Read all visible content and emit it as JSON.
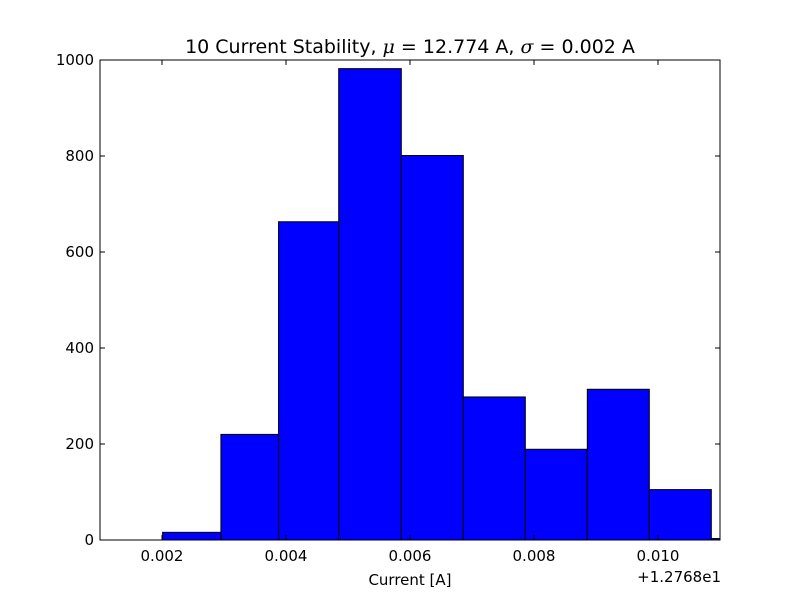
{
  "chart_data": {
    "type": "bar",
    "title": "10 Current Stability, μ = 12.774 A, σ = 0.002 A",
    "title_parts": {
      "lead": "10 Current Stability, ",
      "mu": "μ",
      "mu_text": " = 12.774 A, ",
      "sigma": "σ",
      "sigma_text": " = 0.002 A"
    },
    "xlabel": "Current [A]",
    "ylabel": "",
    "x_offset_label": "+1.2768e1",
    "xlim": [
      0.001,
      0.011
    ],
    "ylim": [
      0,
      1000
    ],
    "x_ticks": [
      0.002,
      0.004,
      0.006,
      0.008,
      0.01
    ],
    "x_tick_labels": [
      "0.002",
      "0.004",
      "0.006",
      "0.008",
      "0.010"
    ],
    "y_ticks": [
      0,
      200,
      400,
      600,
      800,
      1000
    ],
    "y_tick_labels": [
      "0",
      "200",
      "400",
      "600",
      "800",
      "1000"
    ],
    "bins": [
      {
        "x0": 0.00201,
        "x1": 0.00295,
        "count": 16
      },
      {
        "x0": 0.00295,
        "x1": 0.00388,
        "count": 220
      },
      {
        "x0": 0.00388,
        "x1": 0.00485,
        "count": 663
      },
      {
        "x0": 0.00485,
        "x1": 0.00586,
        "count": 982
      },
      {
        "x0": 0.00586,
        "x1": 0.00686,
        "count": 801
      },
      {
        "x0": 0.00686,
        "x1": 0.00786,
        "count": 298
      },
      {
        "x0": 0.00786,
        "x1": 0.00886,
        "count": 189
      },
      {
        "x0": 0.00886,
        "x1": 0.00986,
        "count": 314
      },
      {
        "x0": 0.00986,
        "x1": 0.01086,
        "count": 105
      },
      {
        "x0": 0.01086,
        "x1": 0.01186,
        "count": 3
      }
    ],
    "bar_color": "#0000ff",
    "edge_color": "#000000",
    "grid": false
  }
}
